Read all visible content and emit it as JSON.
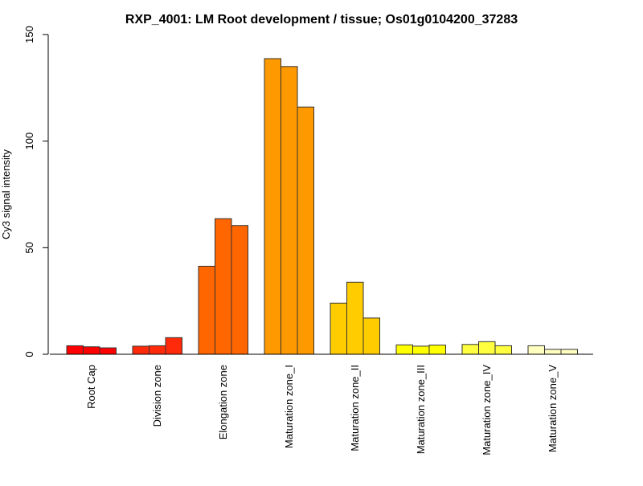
{
  "chart_data": {
    "type": "bar",
    "title": "RXP_4001: LM Root development / tissue; Os01g0104200_37283",
    "xlabel": "",
    "ylabel": "Cy3 signal intensity",
    "ylim": [
      0,
      150
    ],
    "yticks": [
      "0",
      "50",
      "100",
      "150"
    ],
    "grid": false,
    "categories": [
      "Root Cap",
      "Division zone",
      "Elongation zone",
      "Maturation zone_I",
      "Maturation zone_II",
      "Maturation zone_III",
      "Maturation zone_IV",
      "Maturation zone_V"
    ],
    "colors": [
      "#FF0000",
      "#FF2A0A",
      "#FF6600",
      "#FF9900",
      "#FFCC00",
      "#FFFF00",
      "#FFFF40",
      "#FFFFBF"
    ],
    "replicates_per_group": 3,
    "values": [
      [
        4.0,
        3.5,
        3.0
      ],
      [
        3.8,
        4.0,
        7.8
      ],
      [
        41.3,
        63.6,
        60.4
      ],
      [
        138.7,
        135.0,
        116.0
      ],
      [
        24.0,
        33.8,
        17.0
      ],
      [
        4.4,
        3.8,
        4.3
      ],
      [
        4.6,
        5.9,
        4.0
      ],
      [
        4.0,
        2.3,
        2.3
      ]
    ]
  }
}
